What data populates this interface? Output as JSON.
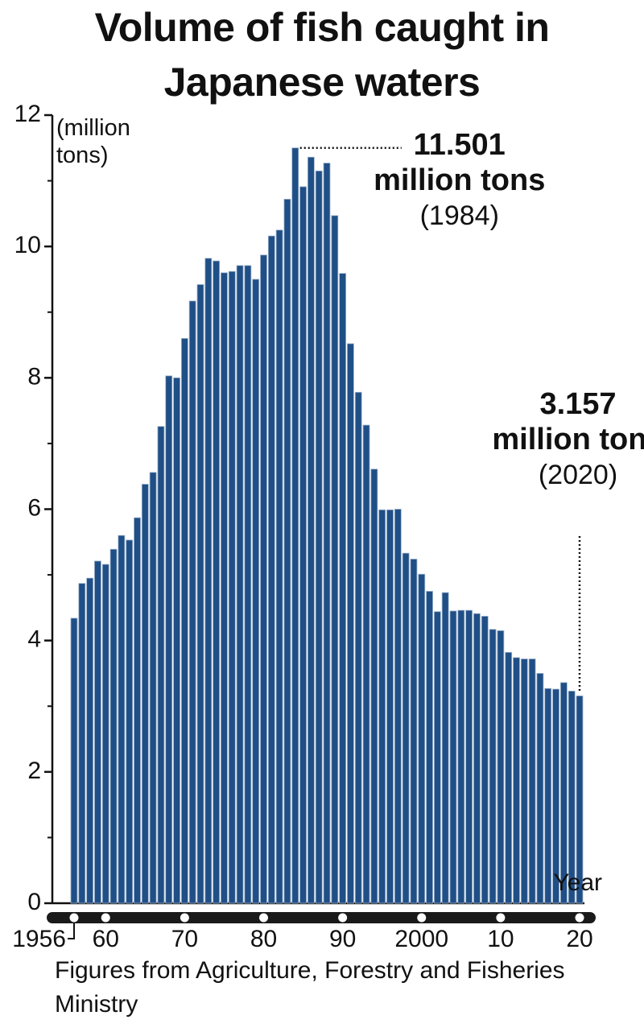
{
  "chart_data": {
    "type": "bar",
    "title": "Volume of fish caught in Japanese waters",
    "y_axis_label": "(million tons)",
    "x_axis_label": "Year",
    "source": "Figures from Agriculture, Forestry and Fisheries Ministry",
    "categories": [
      "1956",
      null,
      null,
      null,
      "60",
      null,
      null,
      null,
      null,
      null,
      null,
      null,
      null,
      null,
      "70",
      null,
      null,
      null,
      null,
      null,
      null,
      null,
      null,
      null,
      "80",
      null,
      null,
      null,
      null,
      null,
      null,
      null,
      null,
      null,
      "90",
      null,
      null,
      null,
      null,
      null,
      null,
      null,
      null,
      null,
      "2000",
      null,
      null,
      null,
      null,
      null,
      null,
      null,
      null,
      null,
      "10",
      null,
      null,
      null,
      null,
      null,
      null,
      null,
      null,
      null,
      "20"
    ],
    "values": [
      4.34,
      4.87,
      4.95,
      5.21,
      5.16,
      5.39,
      5.6,
      5.53,
      5.87,
      6.38,
      6.56,
      7.26,
      8.03,
      8.0,
      8.6,
      9.17,
      9.42,
      9.82,
      9.78,
      9.6,
      9.62,
      9.71,
      9.71,
      9.5,
      9.87,
      10.16,
      10.25,
      10.72,
      11.501,
      10.91,
      11.36,
      11.15,
      11.27,
      10.47,
      9.59,
      8.52,
      7.78,
      7.28,
      6.61,
      5.99,
      5.99,
      6.0,
      5.33,
      5.24,
      5.01,
      4.75,
      4.44,
      4.73,
      4.45,
      4.46,
      4.46,
      4.41,
      4.37,
      4.17,
      4.15,
      3.82,
      3.74,
      3.72,
      3.72,
      3.5,
      3.27,
      3.26,
      3.36,
      3.23,
      3.157
    ],
    "color": "#1f4f86",
    "ylim": [
      0,
      12
    ],
    "yticks": [
      0,
      2,
      4,
      6,
      8,
      10,
      12
    ],
    "yminorticks": [
      1,
      3,
      5,
      7,
      9,
      11
    ],
    "annotations": [
      {
        "value": 11.501,
        "unit": "million tons",
        "note": "(1984)"
      },
      {
        "value": 3.157,
        "unit": "million tons",
        "note": "(2020)"
      }
    ]
  }
}
